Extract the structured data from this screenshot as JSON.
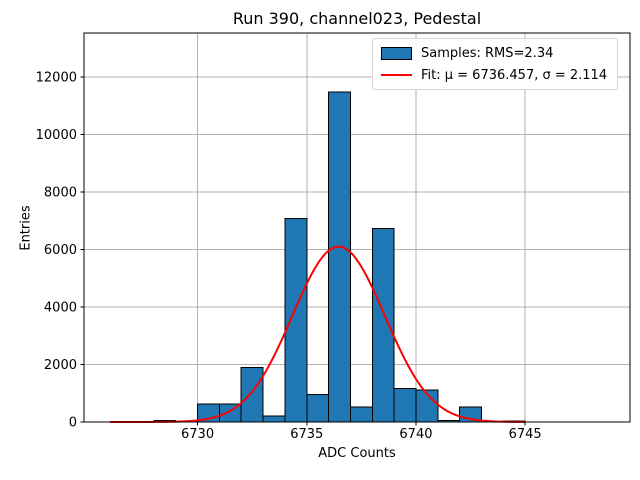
{
  "chart_data": {
    "type": "bar",
    "subtype": "histogram-with-gaussian-fit",
    "title": "Run 390, channel023, Pedestal",
    "xlabel": "ADC Counts",
    "ylabel": "Entries",
    "bins": {
      "start": 6726,
      "width": 1
    },
    "counts": [
      0,
      0,
      60,
      0,
      620,
      620,
      1900,
      200,
      7080,
      950,
      11470,
      520,
      6730,
      1160,
      1110,
      60,
      530,
      0,
      40
    ],
    "fit": {
      "mu": 6736.457,
      "sigma": 2.114,
      "amplitude": 6100,
      "x_start": 6726,
      "x_end": 6745
    },
    "xlim": [
      6724.8,
      6749.8
    ],
    "ylim": [
      0,
      13530
    ],
    "xticks": [
      6730,
      6735,
      6740,
      6745
    ],
    "yticks": [
      0,
      2000,
      4000,
      6000,
      8000,
      10000,
      12000
    ],
    "grid": true,
    "legend_position": "upper right",
    "colors": {
      "bar_fill": "#1f77b4",
      "bar_edge": "#000000",
      "fit_line": "#ff0000",
      "grid": "#b2b2b2",
      "spine": "#000000",
      "text": "#000000"
    },
    "legend": {
      "samples_label": "Samples: RMS=2.34",
      "fit_label": "Fit: μ = 6736.457, σ = 2.114"
    }
  }
}
